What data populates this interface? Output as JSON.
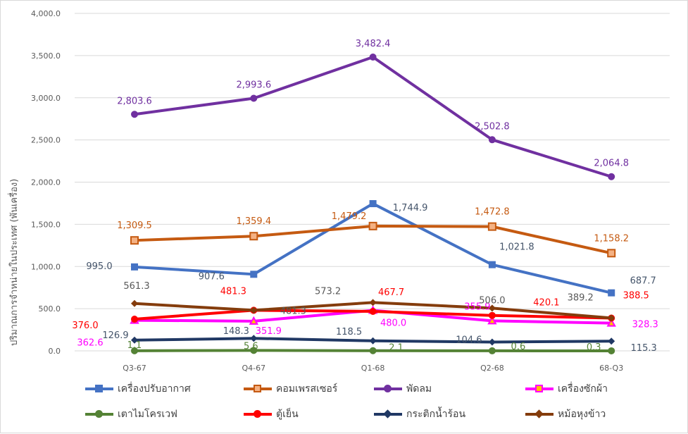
{
  "chart_data": {
    "type": "line",
    "title": "",
    "ylabel": "ปริมาณการจำหน่ายในประเทศ (พันเครื่อง)",
    "xlabel": "",
    "categories": [
      "Q3-67",
      "Q4-67",
      "Q1-68",
      "Q2-68",
      "68-Q3"
    ],
    "ylim": [
      0,
      4000
    ],
    "yticks": [
      "0.0",
      "500.0",
      "1,000.0",
      "1,500.0",
      "2,000.0",
      "2,500.0",
      "3,000.0",
      "3,500.0",
      "4,000.0"
    ],
    "grid": true,
    "legend_position": "bottom",
    "series": [
      {
        "name": "เครื่องปรับอากาศ",
        "color": "#4472C4",
        "label_color": "#44546A",
        "marker": "square",
        "values": [
          995.0,
          907.6,
          1744.9,
          1021.8,
          687.7
        ],
        "labels": [
          "995.0",
          "907.6",
          "1,744.9",
          "1,021.8",
          "687.7"
        ]
      },
      {
        "name": "คอมเพรสเซอร์",
        "color": "#C55A11",
        "label_color": "#C55A11",
        "marker": "square-open",
        "values": [
          1309.5,
          1359.4,
          1479.2,
          1472.8,
          1158.2
        ],
        "labels": [
          "1,309.5",
          "1,359.4",
          "1,479.2",
          "1,472.8",
          "1,158.2"
        ]
      },
      {
        "name": "พัดลม",
        "color": "#7030A0",
        "label_color": "#7030A0",
        "marker": "circle",
        "values": [
          2803.6,
          2993.6,
          3482.4,
          2502.8,
          2064.8
        ],
        "labels": [
          "2,803.6",
          "2,993.6",
          "3,482.4",
          "2,502.8",
          "2,064.8"
        ]
      },
      {
        "name": "เครื่องซักผ้า",
        "color": "#FF00FF",
        "label_color": "#FF00FF",
        "marker": "triangle",
        "values": [
          362.6,
          351.9,
          480.0,
          355.9,
          328.3
        ],
        "labels": [
          "362.6",
          "351.9",
          "480.0",
          "355.9",
          "328.3"
        ]
      },
      {
        "name": "เตาไมโครเวฟ",
        "color": "#548235",
        "label_color": "#548235",
        "marker": "circle",
        "values": [
          1.1,
          5.6,
          2.1,
          0.6,
          0.3
        ],
        "labels": [
          "1.1",
          "5.6",
          "2.1",
          "0.6",
          "0.3"
        ]
      },
      {
        "name": "ตู้เย็น",
        "color": "#FF0000",
        "label_color": "#FF0000",
        "marker": "circle",
        "values": [
          376.0,
          481.3,
          467.7,
          420.1,
          388.5
        ],
        "labels": [
          "376.0",
          "481.3",
          "467.7",
          "420.1",
          "388.5"
        ]
      },
      {
        "name": "กระติกน้ำร้อน",
        "color": "#203864",
        "label_color": "#44546A",
        "marker": "diamond",
        "values": [
          126.9,
          148.3,
          118.5,
          104.6,
          115.3
        ],
        "labels": [
          "126.9",
          "148.3",
          "118.5",
          "104.6",
          "115.3"
        ]
      },
      {
        "name": "หม้อหุงข้าว",
        "color": "#843C0C",
        "label_color": "#595959",
        "marker": "diamond",
        "values": [
          561.3,
          481.3,
          573.2,
          506.0,
          389.2
        ],
        "labels": [
          "561.3",
          "481.3",
          "573.2",
          "506.0",
          "389.2"
        ]
      }
    ]
  }
}
